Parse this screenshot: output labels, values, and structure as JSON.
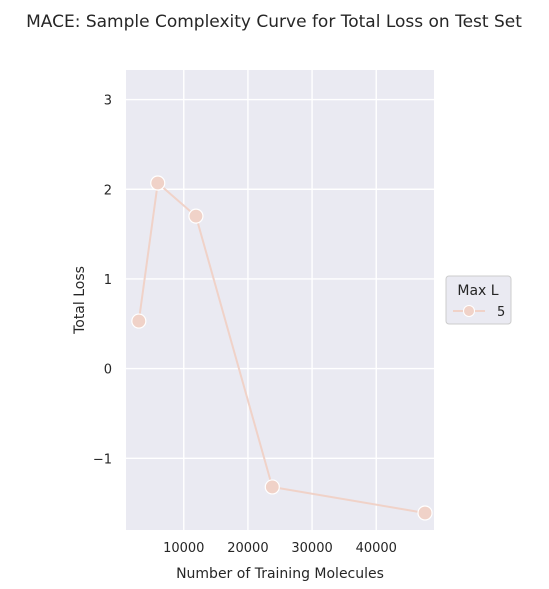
{
  "chart_data": {
    "type": "line",
    "title": "MACE: Sample Complexity Curve for Total Loss on Test Set",
    "xlabel": "Number of Training Molecules",
    "ylabel": "Total Loss",
    "xlim": [
      1000,
      49000
    ],
    "ylim": [
      -1.8,
      3.33
    ],
    "xticks": [
      10000,
      20000,
      30000,
      40000
    ],
    "xtick_labels": [
      "10000",
      "20000",
      "30000",
      "40000"
    ],
    "yticks": [
      -1,
      0,
      1,
      2,
      3
    ],
    "ytick_labels": [
      "−1",
      "0",
      "1",
      "2",
      "3"
    ],
    "grid": true,
    "legend": {
      "title": "Max L",
      "position": "right"
    },
    "series": [
      {
        "name": "5",
        "color": "#f0d2c8",
        "marker": "circle",
        "x": [
          3000,
          5950,
          11900,
          23800,
          47600
        ],
        "y": [
          0.53,
          2.07,
          1.7,
          -1.32,
          -1.61
        ]
      }
    ]
  }
}
